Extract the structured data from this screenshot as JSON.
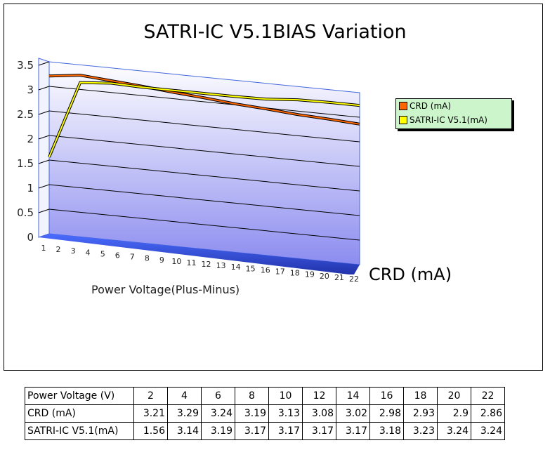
{
  "chart_data": {
    "type": "line",
    "title": "SATRI-IC V5.1BIAS Variation",
    "xlabel": "Power Voltage(Plus-Minus)",
    "zlabel": "CRD (mA)",
    "x_ticks": [
      "1",
      "2",
      "3",
      "4",
      "5",
      "6",
      "7",
      "8",
      "9",
      "10",
      "11",
      "12",
      "13",
      "14",
      "15",
      "16",
      "17",
      "18",
      "19",
      "20",
      "21",
      "22"
    ],
    "y_ticks": [
      "0",
      "0.5",
      "1",
      "1.5",
      "2",
      "2.5",
      "3",
      "3.5"
    ],
    "ylim": [
      0,
      3.5
    ],
    "grid": true,
    "legend_position": "right",
    "x": [
      2,
      4,
      6,
      8,
      10,
      12,
      14,
      16,
      18,
      20,
      22
    ],
    "series": [
      {
        "name": "CRD (mA)",
        "color": "#ff6600",
        "values": [
          3.21,
          3.29,
          3.24,
          3.19,
          3.13,
          3.08,
          3.02,
          2.98,
          2.93,
          2.9,
          2.86
        ]
      },
      {
        "name": "SATRI-IC V5.1(mA)",
        "color": "#ffff00",
        "values": [
          1.56,
          3.14,
          3.19,
          3.17,
          3.17,
          3.17,
          3.17,
          3.18,
          3.23,
          3.24,
          3.24
        ]
      }
    ]
  },
  "table": {
    "header_label": "Power Voltage (V)",
    "headers": [
      "2",
      "4",
      "6",
      "8",
      "10",
      "12",
      "14",
      "16",
      "18",
      "20",
      "22"
    ],
    "rows": [
      {
        "label": "CRD (mA)",
        "values": [
          "3.21",
          "3.29",
          "3.24",
          "3.19",
          "3.13",
          "3.08",
          "3.02",
          "2.98",
          "2.93",
          "2.9",
          "2.86"
        ]
      },
      {
        "label": "SATRI-IC V5.1(mA)",
        "values": [
          "1.56",
          "3.14",
          "3.19",
          "3.17",
          "3.17",
          "3.17",
          "3.17",
          "3.18",
          "3.23",
          "3.24",
          "3.24"
        ]
      }
    ]
  }
}
